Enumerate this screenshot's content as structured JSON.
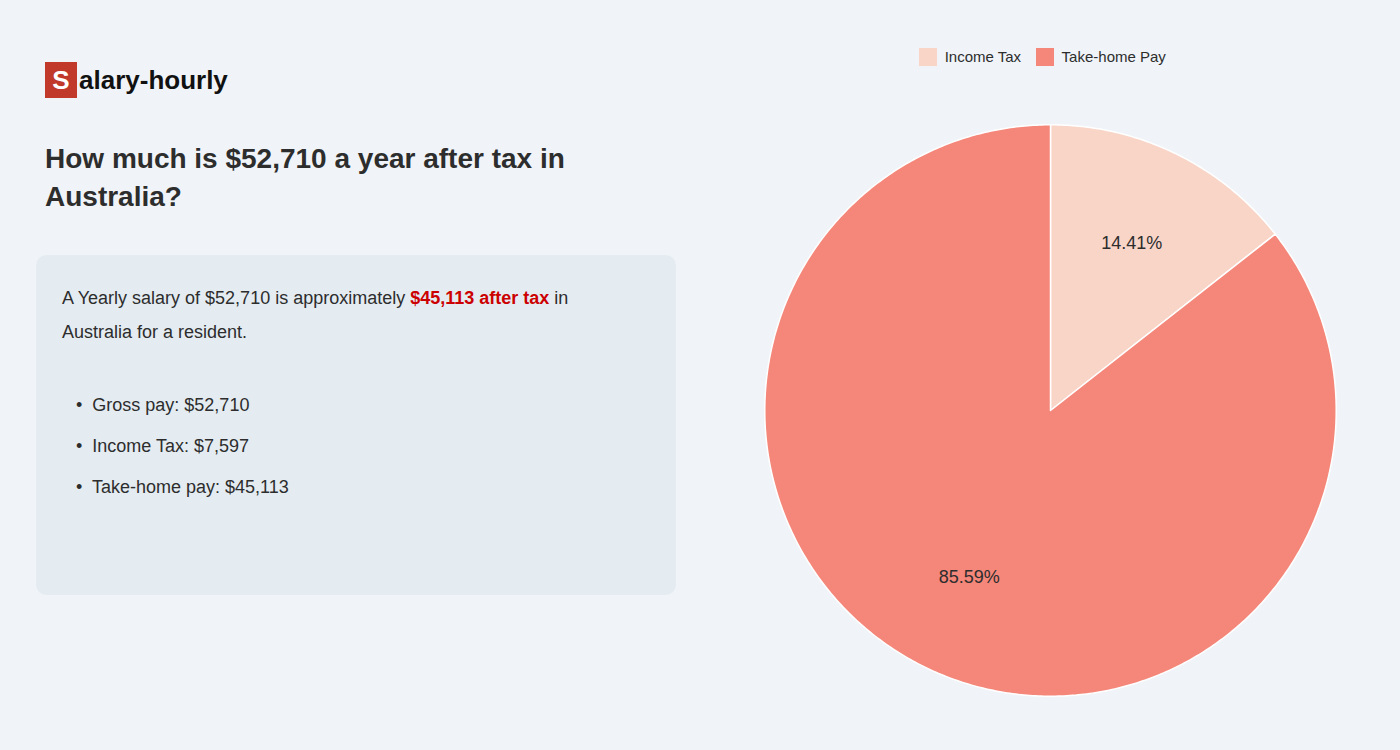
{
  "chart_data": {
    "type": "pie",
    "title": "How much is $52,710 a year after tax in\nAustralia?",
    "categories": [
      "Income Tax",
      "Take-home Pay"
    ],
    "values": [
      14.41,
      85.59
    ],
    "value_labels": [
      "14.41%",
      "85.59%"
    ],
    "colors": [
      "#f9d5c8",
      "#f4877a"
    ],
    "data_labels": true,
    "legend": "top",
    "annotations": [
      "S",
      "alary-hourly",
      "A Yearly salary of $52,710 is approximately ",
      "$45,113 after tax",
      " in",
      "Australia for a resident.",
      "•  Gross pay: $52,710",
      "•  Income Tax: $7,597",
      "•  Take-home pay: $45,113"
    ]
  }
}
